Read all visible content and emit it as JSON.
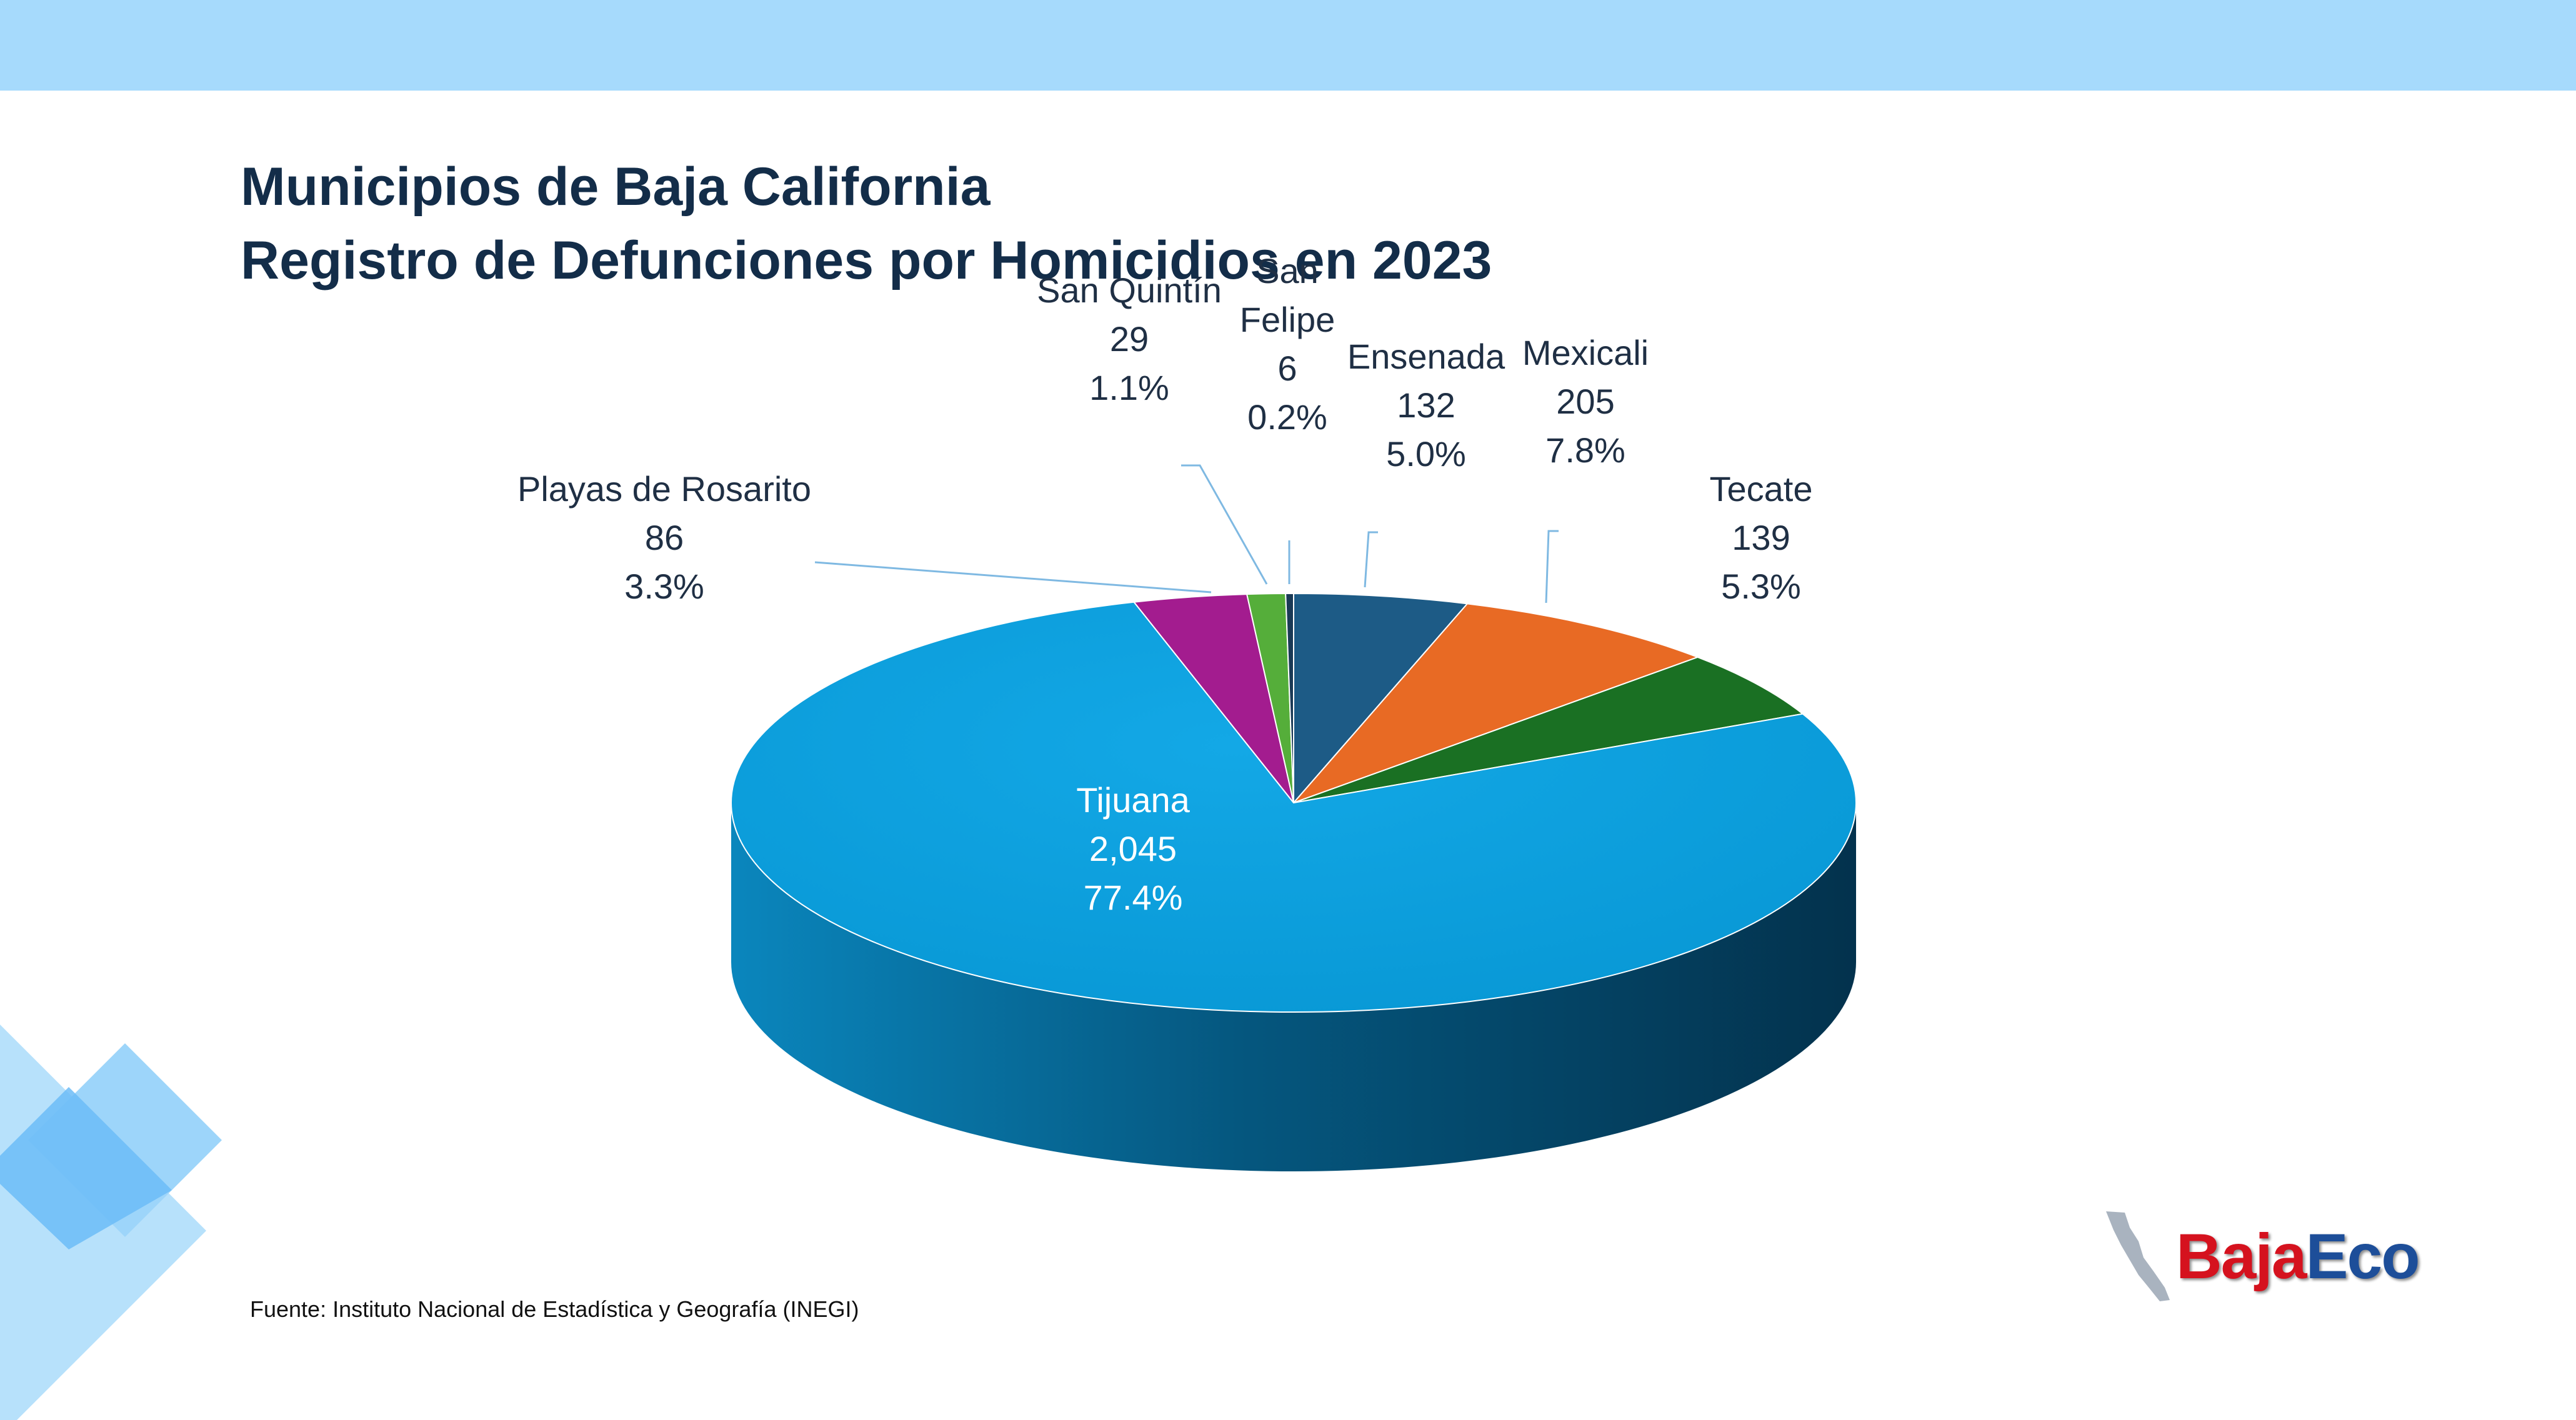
{
  "header": {
    "title_line1": "Municipios de Baja California",
    "title_line2": "Registro de Defunciones por Homicidios en 2023"
  },
  "source": "Fuente: Instituto Nacional de Estadística y Geografía (INEGI)",
  "logo": {
    "part1": "Baja",
    "part2": "Eco",
    "colors": [
      "#d5121e",
      "#1d4e99"
    ]
  },
  "colors": {
    "band": "#a6dafc",
    "title": "#132d49"
  },
  "chart_data": {
    "type": "pie",
    "style": "3d",
    "categories": [
      "Ensenada",
      "Mexicali",
      "Tecate",
      "Tijuana",
      "Playas de Rosarito",
      "San Quintín",
      "San Felipe"
    ],
    "values": [
      132,
      205,
      139,
      2045,
      86,
      29,
      6
    ],
    "value_labels": [
      "132",
      "205",
      "139",
      "2,045",
      "86",
      "29",
      "6"
    ],
    "percent_labels": [
      "5.0%",
      "7.8%",
      "5.3%",
      "77.4%",
      "3.3%",
      "1.1%",
      "0.2%"
    ],
    "colors": [
      "#1d5b86",
      "#e86a24",
      "#1a7023",
      "#0b9ed8",
      "#a31c8f",
      "#55ae3a",
      "#1a3a56"
    ],
    "start": "12 o'clock, clockwise",
    "legend": "none (data labels)"
  }
}
